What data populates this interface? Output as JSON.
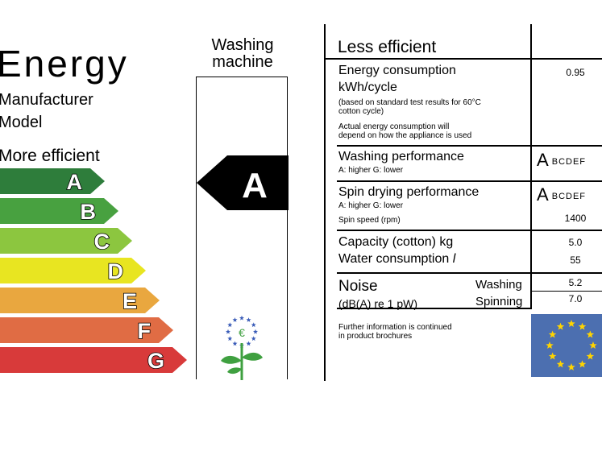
{
  "header": {
    "title": "Energy",
    "manufacturer": "Manufacturer",
    "model": "Model",
    "more_efficient": "More efficient",
    "less_efficient": "Less efficient",
    "appliance_line1": "Washing",
    "appliance_line2": "machine"
  },
  "classes": [
    {
      "letter": "A",
      "color": "#2e7d3b"
    },
    {
      "letter": "B",
      "color": "#48a140"
    },
    {
      "letter": "C",
      "color": "#8cc63f"
    },
    {
      "letter": "D",
      "color": "#e8e521"
    },
    {
      "letter": "E",
      "color": "#e9a73f"
    },
    {
      "letter": "F",
      "color": "#e06c44"
    },
    {
      "letter": "G",
      "color": "#d83a3a"
    }
  ],
  "rating": {
    "letter": "A"
  },
  "energy": {
    "label1": "Energy consumption",
    "label2": "kWh/cycle",
    "note1": "(based on standard test results for 60°C",
    "note2": "cotton cycle)",
    "note3": "Actual energy consumption will",
    "note4": "depend on how the appliance is used",
    "value": "0.95"
  },
  "washing": {
    "label": "Washing performance",
    "scale_note": "A: higher  G: lower",
    "scale_big": "A",
    "scale_rest": "BCDEF"
  },
  "spin": {
    "label": "Spin drying performance",
    "scale_note": "A: higher  G: lower",
    "scale_big": "A",
    "scale_rest": "BCDEF",
    "speed_label": "Spin speed (rpm)",
    "speed_value": "1400"
  },
  "capacity": {
    "label": "Capacity (cotton) kg",
    "value": "5.0"
  },
  "water": {
    "label": "Water consumption",
    "unit": "l",
    "value": "55"
  },
  "noise": {
    "label": "Noise",
    "unit": "(dB(A) re 1 pW)",
    "washing_label": "Washing",
    "washing_value": "5.2",
    "spinning_label": "Spinning",
    "spinning_value": "7.0"
  },
  "footer": {
    "line1": "Further information is continued",
    "line2": "in product brochures"
  },
  "colors": {
    "eu_blue": "#4c6fb0",
    "eu_star": "#ffd400",
    "flower_green": "#3fa040",
    "flower_blue": "#3a5cb8"
  },
  "icons": {
    "flower": "eu-ecolabel-flower-icon",
    "flag": "eu-flag-icon"
  }
}
